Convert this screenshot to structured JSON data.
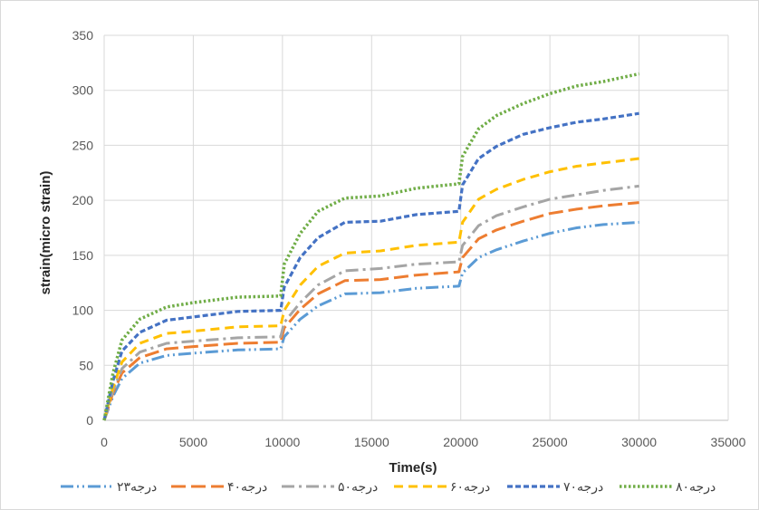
{
  "chart_data": {
    "type": "line",
    "title": "",
    "xlabel": "Time(s)",
    "ylabel": "strain(micro strain)",
    "xlim": [
      0,
      35000
    ],
    "ylim": [
      0,
      350
    ],
    "xticks": [
      0,
      5000,
      10000,
      15000,
      20000,
      25000,
      30000,
      35000
    ],
    "yticks": [
      0,
      50,
      100,
      150,
      200,
      250,
      300,
      350
    ],
    "grid": true,
    "legend_position": "bottom",
    "x": [
      0,
      500,
      1000,
      2000,
      3500,
      5000,
      7500,
      9900,
      10100,
      11000,
      12000,
      13500,
      15500,
      17500,
      19900,
      20100,
      21000,
      22000,
      23500,
      25000,
      26500,
      28000,
      30000
    ],
    "series": [
      {
        "name": "۲۳درجه",
        "color": "#5B9BD5",
        "dash": "14 4 2 4 2 4",
        "width": 3,
        "values": [
          0,
          22,
          38,
          52,
          59,
          61,
          64,
          65,
          76,
          92,
          104,
          115,
          116,
          120,
          122,
          134,
          148,
          155,
          163,
          170,
          175,
          178,
          180
        ]
      },
      {
        "name": "۴۰درجه",
        "color": "#ED7D31",
        "dash": "16 6",
        "width": 3,
        "values": [
          0,
          25,
          43,
          57,
          65,
          67,
          70,
          71,
          84,
          101,
          115,
          127,
          128,
          132,
          135,
          148,
          165,
          173,
          181,
          188,
          192,
          195,
          198
        ]
      },
      {
        "name": "۵۰درجه",
        "color": "#A5A5A5",
        "dash": "14 5 3 5",
        "width": 3,
        "values": [
          0,
          27,
          47,
          62,
          70,
          72,
          75,
          76,
          89,
          107,
          123,
          136,
          138,
          142,
          144,
          159,
          177,
          186,
          194,
          201,
          205,
          209,
          213
        ]
      },
      {
        "name": "۶۰درجه",
        "color": "#FFC000",
        "dash": "10 6",
        "width": 3,
        "values": [
          0,
          30,
          53,
          70,
          79,
          81,
          85,
          86,
          100,
          123,
          140,
          152,
          154,
          159,
          162,
          180,
          201,
          210,
          219,
          226,
          231,
          234,
          238
        ]
      },
      {
        "name": "۷۰درجه",
        "color": "#4472C4",
        "dash": "6 3",
        "width": 3.2,
        "values": [
          0,
          36,
          63,
          80,
          91,
          94,
          99,
          100,
          121,
          148,
          166,
          180,
          181,
          187,
          190,
          214,
          238,
          249,
          260,
          266,
          271,
          274,
          279
        ]
      },
      {
        "name": "۸۰درجه",
        "color": "#70AD47",
        "dash": "2.5 2.5",
        "width": 3.5,
        "values": [
          0,
          43,
          73,
          92,
          103,
          107,
          112,
          113,
          142,
          170,
          190,
          202,
          204,
          211,
          215,
          240,
          265,
          277,
          288,
          297,
          304,
          308,
          315
        ]
      }
    ]
  }
}
